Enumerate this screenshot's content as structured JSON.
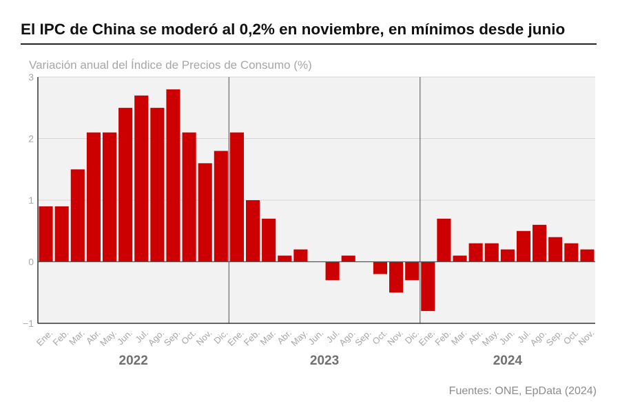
{
  "header": {
    "title": "El IPC de China se moderó al 0,2% en noviembre, en mínimos desde junio",
    "subtitle": "Variación anual del Índice de Precios de Consumo (%)",
    "source": "Fuentes: ONE, EpData (2024)"
  },
  "chart_data": {
    "type": "bar",
    "title": "El IPC de China se moderó al 0,2% en noviembre, en mínimos desde junio",
    "ylabel": "Variación anual del Índice de Precios de Consumo (%)",
    "ylim": [
      -1,
      3
    ],
    "yticks": [
      3,
      2,
      1,
      0,
      -1
    ],
    "ytick_labels": [
      "3",
      "2",
      "1",
      "0",
      "−1"
    ],
    "grid": true,
    "bar_color": "#cc0000",
    "years": [
      "2022",
      "2023",
      "2024"
    ],
    "categories": [
      "Ene.",
      "Feb.",
      "Mar.",
      "Abr.",
      "May.",
      "Jun.",
      "Jul.",
      "Ago.",
      "Sep.",
      "Oct.",
      "Nov.",
      "Dic.",
      "Ene.",
      "Feb.",
      "Mar.",
      "Abr.",
      "May.",
      "Jun.",
      "Jul.",
      "Ago.",
      "Sep.",
      "Oct.",
      "Nov.",
      "Dic.",
      "Ene.",
      "Feb.",
      "Mar.",
      "Abr.",
      "May.",
      "Jun.",
      "Jul.",
      "Ago.",
      "Sep.",
      "Oct.",
      "Nov."
    ],
    "values": [
      0.9,
      0.9,
      1.5,
      2.1,
      2.1,
      2.5,
      2.7,
      2.5,
      2.8,
      2.1,
      1.6,
      1.8,
      2.1,
      1.0,
      0.7,
      0.1,
      0.2,
      0.0,
      -0.3,
      0.1,
      0.0,
      -0.2,
      -0.5,
      -0.3,
      -0.8,
      0.7,
      0.1,
      0.3,
      0.3,
      0.2,
      0.5,
      0.6,
      0.4,
      0.3,
      0.2
    ]
  }
}
